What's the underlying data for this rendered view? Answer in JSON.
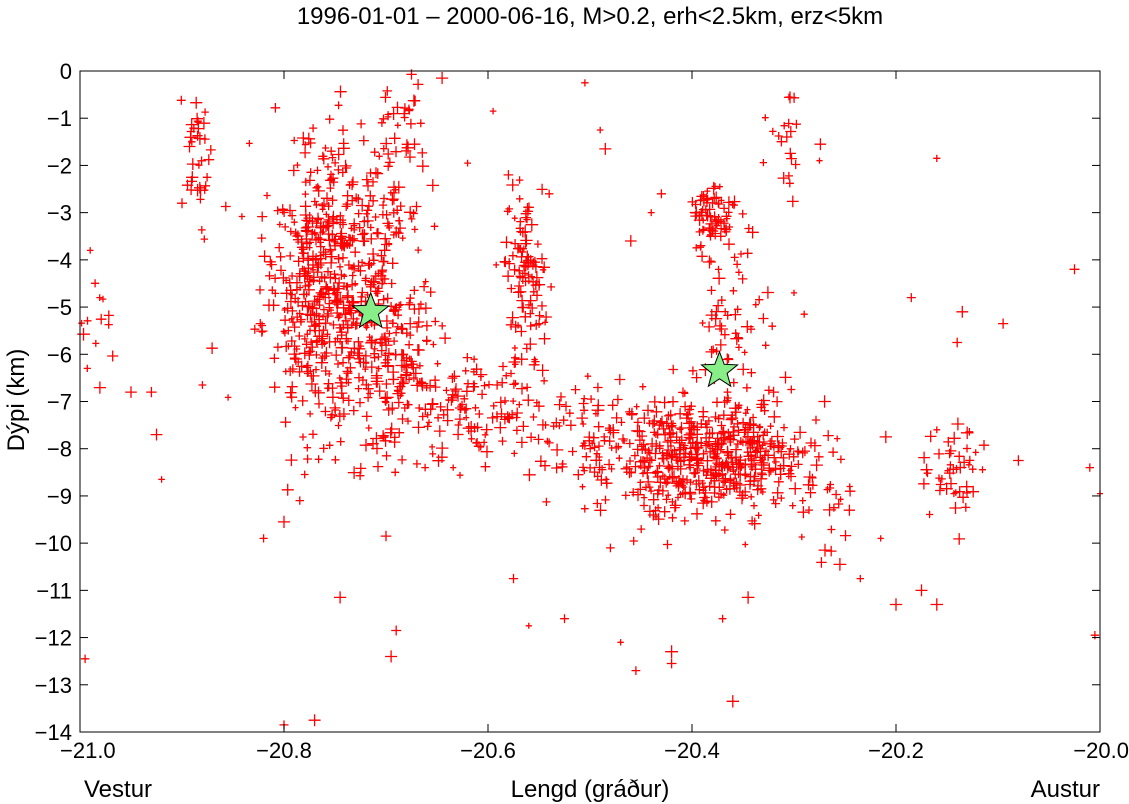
{
  "chart_data": {
    "type": "scatter",
    "title": "1996-01-01 – 2000-06-16, M>0.2, erh<2.5km, erz<5km",
    "xlabel": "Lengd (gráður)",
    "ylabel": "Dýpi (km)",
    "x_left_label": "Vestur",
    "x_right_label": "Austur",
    "xlim": [
      -21.0,
      -20.0
    ],
    "ylim": [
      -14,
      0
    ],
    "xticks": [
      -21.0,
      -20.8,
      -20.6,
      -20.4,
      -20.2,
      -20.0
    ],
    "xtick_labels": [
      "−21.0",
      "−20.8",
      "−20.6",
      "−20.4",
      "−20.2",
      "−20.0"
    ],
    "yticks": [
      0,
      -1,
      -2,
      -3,
      -4,
      -5,
      -6,
      -7,
      -8,
      -9,
      -10,
      -11,
      -12,
      -13,
      -14
    ],
    "ytick_labels": [
      "0",
      "−1",
      "−2",
      "−3",
      "−4",
      "−5",
      "−6",
      "−7",
      "−8",
      "−9",
      "−10",
      "−11",
      "−12",
      "−13",
      "−14"
    ],
    "grid": false,
    "marker_color": "#ff0000",
    "star_color": "#88ee88",
    "series": [
      {
        "marker": "plus",
        "clusters": [
          {
            "x": -20.77,
            "y": -4.6,
            "sx": 0.025,
            "sy": 1.5,
            "n": 420
          },
          {
            "x": -20.72,
            "y": -4.8,
            "sx": 0.02,
            "sy": 1.6,
            "n": 180
          },
          {
            "x": -20.685,
            "y": -6.3,
            "sx": 0.018,
            "sy": 0.9,
            "n": 120
          },
          {
            "x": -20.885,
            "y": -1.8,
            "sx": 0.006,
            "sy": 0.7,
            "n": 35
          },
          {
            "x": -20.562,
            "y": -4.5,
            "sx": 0.01,
            "sy": 1.0,
            "n": 110
          },
          {
            "x": -20.62,
            "y": -7.2,
            "sx": 0.03,
            "sy": 0.6,
            "n": 100
          },
          {
            "x": -20.5,
            "y": -7.7,
            "sx": 0.05,
            "sy": 0.6,
            "n": 120
          },
          {
            "x": -20.41,
            "y": -8.3,
            "sx": 0.04,
            "sy": 0.55,
            "n": 280
          },
          {
            "x": -20.35,
            "y": -8.0,
            "sx": 0.03,
            "sy": 0.6,
            "n": 180
          },
          {
            "x": -20.38,
            "y": -3.1,
            "sx": 0.012,
            "sy": 0.35,
            "n": 70
          },
          {
            "x": -20.365,
            "y": -5.2,
            "sx": 0.015,
            "sy": 1.0,
            "n": 60
          },
          {
            "x": -20.285,
            "y": -8.9,
            "sx": 0.02,
            "sy": 0.6,
            "n": 50
          },
          {
            "x": -20.14,
            "y": -8.5,
            "sx": 0.015,
            "sy": 0.5,
            "n": 45
          },
          {
            "x": -20.985,
            "y": -5.5,
            "sx": 0.01,
            "sy": 0.9,
            "n": 15
          },
          {
            "x": -20.68,
            "y": -1.3,
            "sx": 0.015,
            "sy": 0.6,
            "n": 30
          },
          {
            "x": -20.31,
            "y": -1.6,
            "sx": 0.01,
            "sy": 0.6,
            "n": 20
          },
          {
            "x": -20.7,
            "y": -2.8,
            "sx": 0.02,
            "sy": 0.6,
            "n": 40
          }
        ],
        "points": [
          [
            -20.995,
            -12.45
          ],
          [
            -20.99,
            -3.8
          ],
          [
            -20.95,
            -6.8
          ],
          [
            -20.93,
            -6.8
          ],
          [
            -20.925,
            -7.7
          ],
          [
            -20.92,
            -8.65
          ],
          [
            -20.9,
            -2.8
          ],
          [
            -20.88,
            -6.65
          ],
          [
            -20.82,
            -9.9
          ],
          [
            -20.8,
            -9.55
          ],
          [
            -20.8,
            -13.85
          ],
          [
            -20.77,
            -13.75
          ],
          [
            -20.745,
            -11.15
          ],
          [
            -20.7,
            -9.85
          ],
          [
            -20.69,
            -11.85
          ],
          [
            -20.695,
            -12.4
          ],
          [
            -20.645,
            -0.15
          ],
          [
            -20.575,
            -10.75
          ],
          [
            -20.56,
            -11.75
          ],
          [
            -20.525,
            -11.6
          ],
          [
            -20.505,
            -0.25
          ],
          [
            -20.49,
            -1.25
          ],
          [
            -20.485,
            -1.65
          ],
          [
            -20.48,
            -10.1
          ],
          [
            -20.47,
            -12.1
          ],
          [
            -20.455,
            -12.7
          ],
          [
            -20.42,
            -12.3
          ],
          [
            -20.42,
            -12.55
          ],
          [
            -20.37,
            -11.6
          ],
          [
            -20.36,
            -13.35
          ],
          [
            -20.345,
            -11.15
          ],
          [
            -20.305,
            -0.55
          ],
          [
            -20.275,
            -1.9
          ],
          [
            -20.27,
            -7.0
          ],
          [
            -20.255,
            -10.45
          ],
          [
            -20.235,
            -10.75
          ],
          [
            -20.215,
            -9.9
          ],
          [
            -20.2,
            -11.3
          ],
          [
            -20.16,
            -1.85
          ],
          [
            -20.185,
            -4.8
          ],
          [
            -20.175,
            -11.0
          ],
          [
            -20.16,
            -11.3
          ],
          [
            -20.14,
            -5.75
          ],
          [
            -20.135,
            -5.1
          ],
          [
            -20.095,
            -5.35
          ],
          [
            -20.08,
            -8.25
          ],
          [
            -20.025,
            -4.2
          ],
          [
            -20.005,
            -11.95
          ],
          [
            -20.0,
            -8.95
          ],
          [
            -20.01,
            -8.4
          ],
          [
            -20.62,
            -1.95
          ],
          [
            -20.595,
            -0.85
          ],
          [
            -20.54,
            -2.6
          ],
          [
            -20.58,
            -2.2
          ],
          [
            -20.46,
            -3.6
          ],
          [
            -20.44,
            -3.0
          ],
          [
            -20.43,
            -2.6
          ],
          [
            -20.29,
            -5.15
          ],
          [
            -20.3,
            -4.7
          ],
          [
            -20.32,
            -6.8
          ],
          [
            -20.16,
            -7.6
          ],
          [
            -20.21,
            -7.75
          ],
          [
            -20.245,
            -8.9
          ]
        ]
      }
    ],
    "stars": [
      {
        "x": -20.715,
        "y": -5.1
      },
      {
        "x": -20.373,
        "y": -6.35
      }
    ]
  }
}
